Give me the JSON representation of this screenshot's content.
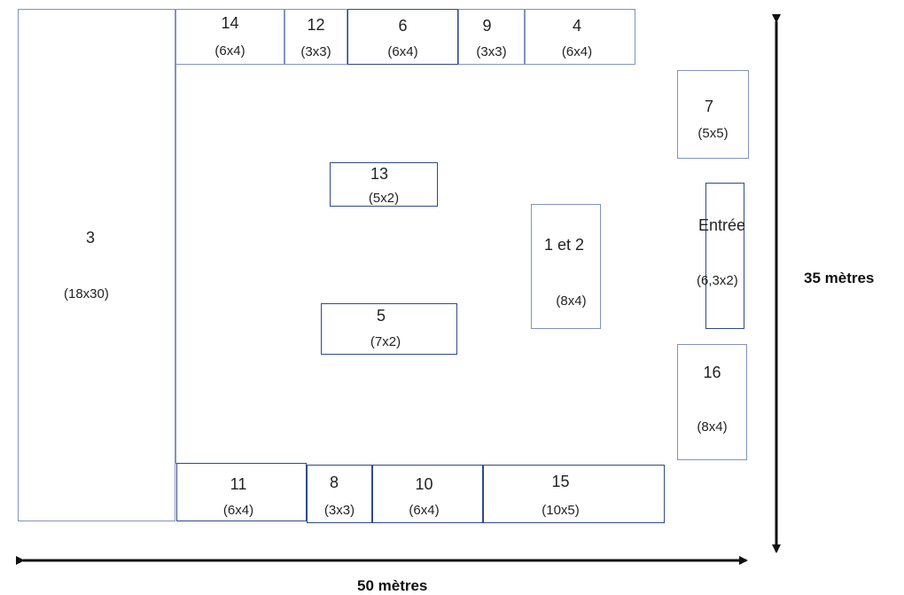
{
  "plan": {
    "stands": [
      {
        "id": "3",
        "name": "3",
        "size": "(18x30)"
      },
      {
        "id": "14",
        "name": "14",
        "size": "(6x4)"
      },
      {
        "id": "12",
        "name": "12",
        "size": "(3x3)"
      },
      {
        "id": "6",
        "name": "6",
        "size": "(6x4)"
      },
      {
        "id": "9",
        "name": "9",
        "size": "(3x3)"
      },
      {
        "id": "4",
        "name": "4",
        "size": "(6x4)"
      },
      {
        "id": "7",
        "name": "7",
        "size": "(5x5)"
      },
      {
        "id": "13",
        "name": "13",
        "size": "(5x2)"
      },
      {
        "id": "1-2",
        "name": "1 et 2",
        "size": "(8x4)"
      },
      {
        "id": "entree",
        "name": "Entrée",
        "size": "(6,3x2)"
      },
      {
        "id": "5",
        "name": "5",
        "size": "(7x2)"
      },
      {
        "id": "16",
        "name": "16",
        "size": "(8x4)"
      },
      {
        "id": "11",
        "name": "11",
        "size": "(6x4)"
      },
      {
        "id": "8",
        "name": "8",
        "size": "(3x3)"
      },
      {
        "id": "10",
        "name": "10",
        "size": "(6x4)"
      },
      {
        "id": "15",
        "name": "15",
        "size": "(10x5)"
      }
    ],
    "height_label": "35 mètres",
    "width_label": "50 mètres"
  }
}
